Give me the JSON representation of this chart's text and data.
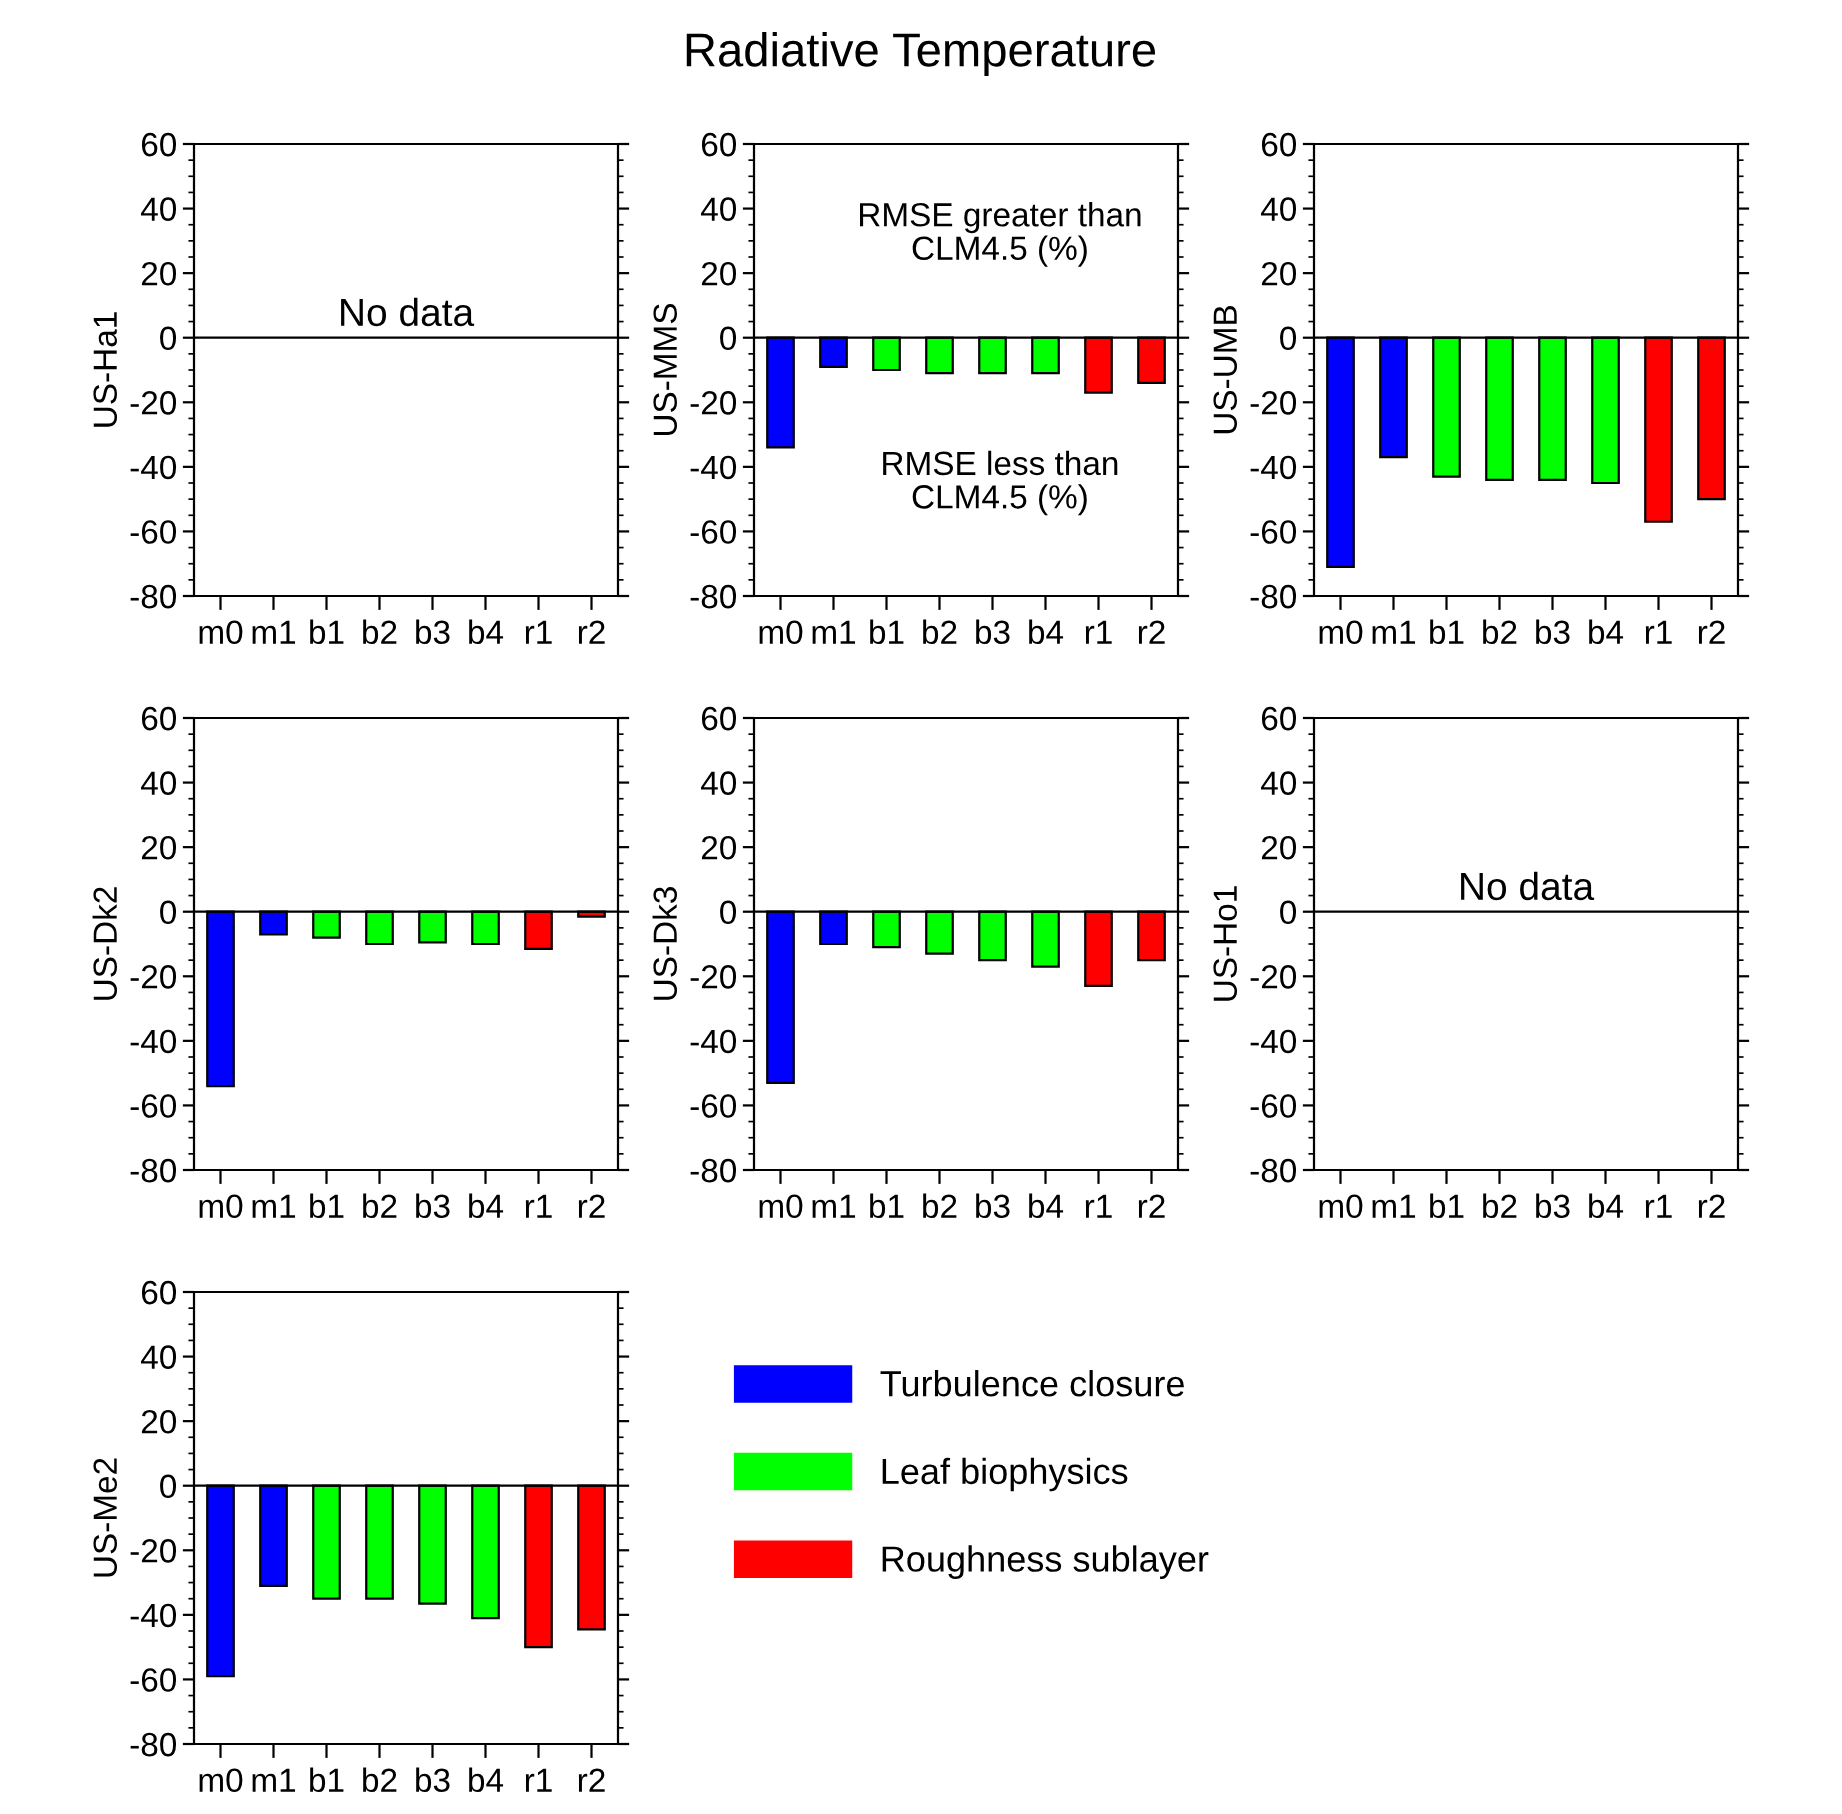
{
  "chart_data": [
    {
      "type": "bar",
      "ylabel": "US-Ha1",
      "categories": [
        "m0",
        "m1",
        "b1",
        "b2",
        "b3",
        "b4",
        "r1",
        "r2"
      ],
      "ylim": [
        -80,
        60
      ],
      "yticks": [
        -80,
        -60,
        -40,
        -20,
        0,
        20,
        40,
        60
      ],
      "annotations": [
        "No data"
      ],
      "ref_lines": [
        {
          "axis": "y",
          "value": 0
        }
      ],
      "values": [
        null,
        null,
        null,
        null,
        null,
        null,
        null,
        null
      ],
      "colors": [
        "#0000ff",
        "#0000ff",
        "#00ff00",
        "#00ff00",
        "#00ff00",
        "#00ff00",
        "#ff0000",
        "#ff0000"
      ]
    },
    {
      "type": "bar",
      "title": "Radiative Temperature",
      "ylabel": "US-MMS",
      "categories": [
        "m0",
        "m1",
        "b1",
        "b2",
        "b3",
        "b4",
        "r1",
        "r2"
      ],
      "ylim": [
        -80,
        60
      ],
      "yticks": [
        -80,
        -60,
        -40,
        -20,
        0,
        20,
        40,
        60
      ],
      "annotations": [
        "RMSE greater than\nCLM4.5 (%)",
        "RMSE less than\nCLM4.5 (%)"
      ],
      "ref_lines": [
        {
          "axis": "y",
          "value": 0
        }
      ],
      "values": [
        -34,
        -9,
        -10,
        -11,
        -11,
        -11,
        -17,
        -14
      ],
      "colors": [
        "#0000ff",
        "#0000ff",
        "#00ff00",
        "#00ff00",
        "#00ff00",
        "#00ff00",
        "#ff0000",
        "#ff0000"
      ]
    },
    {
      "type": "bar",
      "ylabel": "US-UMB",
      "categories": [
        "m0",
        "m1",
        "b1",
        "b2",
        "b3",
        "b4",
        "r1",
        "r2"
      ],
      "ylim": [
        -80,
        60
      ],
      "yticks": [
        -80,
        -60,
        -40,
        -20,
        0,
        20,
        40,
        60
      ],
      "ref_lines": [
        {
          "axis": "y",
          "value": 0
        }
      ],
      "values": [
        -71,
        -37,
        -43,
        -44,
        -44,
        -45,
        -57,
        -50
      ],
      "colors": [
        "#0000ff",
        "#0000ff",
        "#00ff00",
        "#00ff00",
        "#00ff00",
        "#00ff00",
        "#ff0000",
        "#ff0000"
      ]
    },
    {
      "type": "bar",
      "ylabel": "US-Dk2",
      "categories": [
        "m0",
        "m1",
        "b1",
        "b2",
        "b3",
        "b4",
        "r1",
        "r2"
      ],
      "ylim": [
        -80,
        60
      ],
      "yticks": [
        -80,
        -60,
        -40,
        -20,
        0,
        20,
        40,
        60
      ],
      "ref_lines": [
        {
          "axis": "y",
          "value": 0
        }
      ],
      "values": [
        -54,
        -7,
        -8,
        -10,
        -9.5,
        -10,
        -11.5,
        -1.5
      ],
      "colors": [
        "#0000ff",
        "#0000ff",
        "#00ff00",
        "#00ff00",
        "#00ff00",
        "#00ff00",
        "#ff0000",
        "#ff0000"
      ]
    },
    {
      "type": "bar",
      "ylabel": "US-Dk3",
      "categories": [
        "m0",
        "m1",
        "b1",
        "b2",
        "b3",
        "b4",
        "r1",
        "r2"
      ],
      "ylim": [
        -80,
        60
      ],
      "yticks": [
        -80,
        -60,
        -40,
        -20,
        0,
        20,
        40,
        60
      ],
      "ref_lines": [
        {
          "axis": "y",
          "value": 0
        }
      ],
      "values": [
        -53,
        -10,
        -11,
        -13,
        -15,
        -17,
        -23,
        -15
      ],
      "colors": [
        "#0000ff",
        "#0000ff",
        "#00ff00",
        "#00ff00",
        "#00ff00",
        "#00ff00",
        "#ff0000",
        "#ff0000"
      ]
    },
    {
      "type": "bar",
      "ylabel": "US-Ho1",
      "categories": [
        "m0",
        "m1",
        "b1",
        "b2",
        "b3",
        "b4",
        "r1",
        "r2"
      ],
      "ylim": [
        -80,
        60
      ],
      "yticks": [
        -80,
        -60,
        -40,
        -20,
        0,
        20,
        40,
        60
      ],
      "annotations": [
        "No data"
      ],
      "ref_lines": [
        {
          "axis": "y",
          "value": 0
        }
      ],
      "values": [
        null,
        null,
        null,
        null,
        null,
        null,
        null,
        null
      ],
      "colors": [
        "#0000ff",
        "#0000ff",
        "#00ff00",
        "#00ff00",
        "#00ff00",
        "#00ff00",
        "#ff0000",
        "#ff0000"
      ]
    },
    {
      "type": "bar",
      "ylabel": "US-Me2",
      "categories": [
        "m0",
        "m1",
        "b1",
        "b2",
        "b3",
        "b4",
        "r1",
        "r2"
      ],
      "ylim": [
        -80,
        60
      ],
      "yticks": [
        -80,
        -60,
        -40,
        -20,
        0,
        20,
        40,
        60
      ],
      "legend": "right",
      "ref_lines": [
        {
          "axis": "y",
          "value": 0
        }
      ],
      "series": [
        {
          "name": "Turbulence closure",
          "color": "#0000ff",
          "values": [
            -59,
            -31,
            null,
            null,
            null,
            null,
            null,
            null
          ]
        },
        {
          "name": "Leaf biophysics",
          "color": "#00ff00",
          "values": [
            null,
            null,
            -35,
            -35,
            -36.5,
            -41,
            null,
            null
          ]
        },
        {
          "name": "Roughness sublayer",
          "color": "#ff0000",
          "values": [
            null,
            null,
            null,
            null,
            null,
            null,
            -50,
            -44.5
          ]
        }
      ]
    }
  ]
}
